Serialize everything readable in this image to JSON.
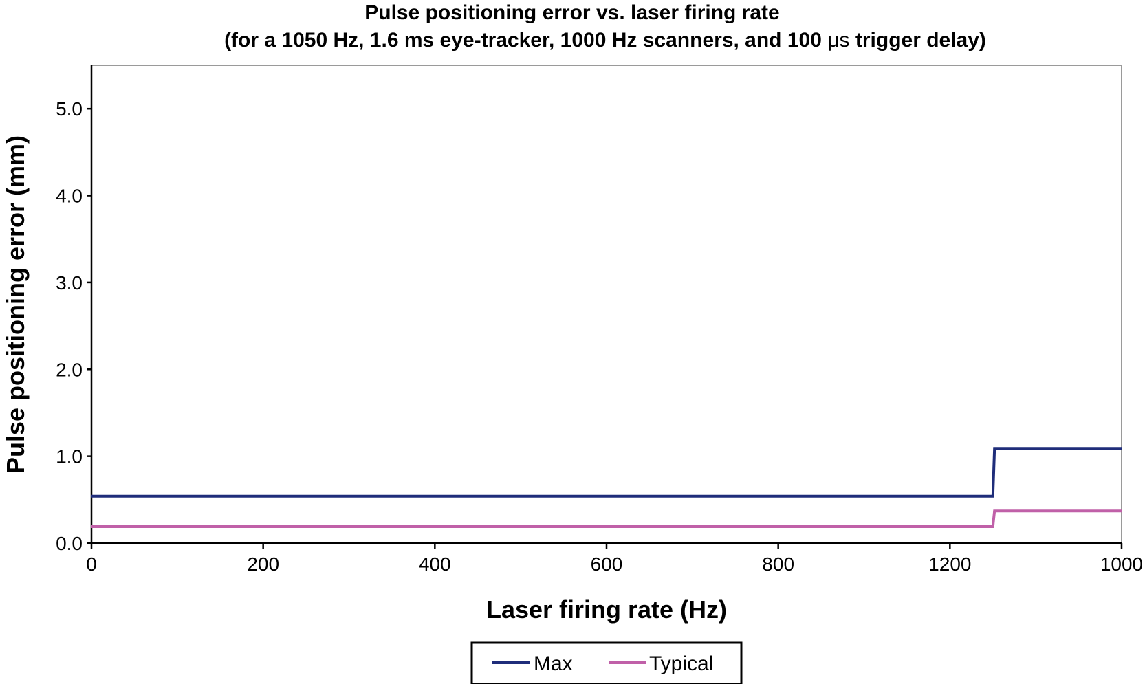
{
  "chart_data": {
    "type": "line",
    "title": "Pulse positioning error vs. laser firing rate",
    "subtitle_prefix": "(for a 1050 Hz, 1.6 ms eye-tracker, 1000 Hz scanners, and 100 ",
    "subtitle_unit": "μs",
    "subtitle_suffix": " trigger delay)",
    "xlabel": "Laser firing rate (Hz)",
    "ylabel": "Pulse positioning error (mm)",
    "x_tick_labels": [
      "0",
      "200",
      "400",
      "600",
      "800",
      "1200",
      "1000"
    ],
    "y_tick_labels": [
      "0.0",
      "1.0",
      "2.0",
      "3.0",
      "4.0",
      "5.0"
    ],
    "x_range": [
      0,
      1200
    ],
    "ylim": [
      0,
      5.5
    ],
    "grid": false,
    "legend_position": "bottom-center",
    "series": [
      {
        "name": "Max",
        "color": "#1f2d7a",
        "x": [
          0,
          1050,
          1052,
          1200
        ],
        "y": [
          0.54,
          0.54,
          1.09,
          1.09
        ]
      },
      {
        "name": "Typical",
        "color": "#c060a8",
        "x": [
          0,
          1050,
          1052,
          1200
        ],
        "y": [
          0.19,
          0.19,
          0.37,
          0.37
        ]
      }
    ]
  }
}
